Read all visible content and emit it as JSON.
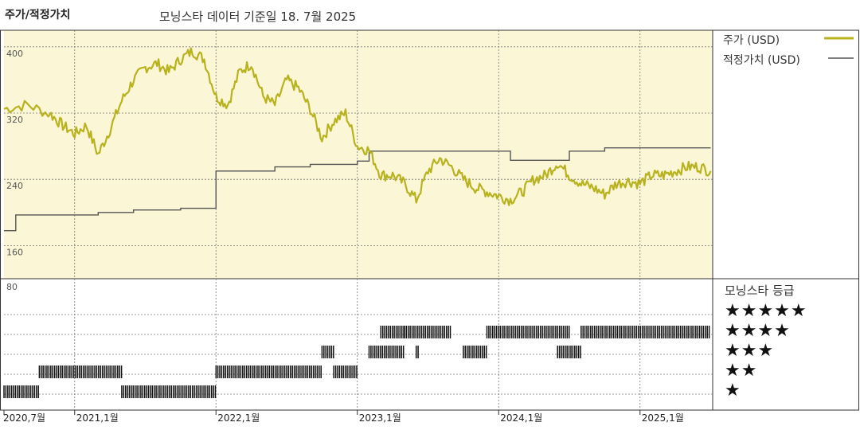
{
  "header": {
    "left_title": "주가/적정가치",
    "center_title": "모닝스타 데이터 기준일 18. 7월 2025"
  },
  "legend": {
    "price_label": "주가 (USD)",
    "fair_value_label": "적정가치 (USD)",
    "rating_title": "모닝스타 등급",
    "star_rows": [
      "★★★★★",
      "★★★★",
      "★★★",
      "★★",
      "★"
    ]
  },
  "colors": {
    "price_line": "#b8b21e",
    "fair_value_line": "#555555",
    "upper_bg": "#fbf6d5",
    "grid": "#777777"
  },
  "chart_data": [
    {
      "type": "line",
      "title": "",
      "y_ticks": [
        400,
        320,
        240,
        160
      ],
      "ylim": [
        120,
        420
      ],
      "x_ticks": [
        "2020,7월",
        "2021,1월",
        "2022,1월",
        "2023,1월",
        "2024,1월",
        "2025,1월"
      ],
      "series": [
        {
          "name": "주가 (USD)",
          "points": [
            [
              "2020-07",
              325
            ],
            [
              "2020-09",
              330
            ],
            [
              "2020-11",
              318
            ],
            [
              "2020-12",
              305
            ],
            [
              "2021-01",
              295
            ],
            [
              "2021-02",
              305
            ],
            [
              "2021-03",
              270
            ],
            [
              "2021-04",
              300
            ],
            [
              "2021-05",
              335
            ],
            [
              "2021-06",
              360
            ],
            [
              "2021-07",
              375
            ],
            [
              "2021-08",
              380
            ],
            [
              "2021-09",
              370
            ],
            [
              "2021-10",
              385
            ],
            [
              "2021-11",
              395
            ],
            [
              "2021-12",
              385
            ],
            [
              "2022-01",
              340
            ],
            [
              "2022-02",
              330
            ],
            [
              "2022-03",
              370
            ],
            [
              "2022-04",
              380
            ],
            [
              "2022-05",
              340
            ],
            [
              "2022-06",
              330
            ],
            [
              "2022-07",
              360
            ],
            [
              "2022-08",
              350
            ],
            [
              "2022-09",
              325
            ],
            [
              "2022-10",
              290
            ],
            [
              "2022-11",
              310
            ],
            [
              "2022-12",
              320
            ],
            [
              "2023-01",
              280
            ],
            [
              "2023-02",
              275
            ],
            [
              "2023-03",
              245
            ],
            [
              "2023-04",
              245
            ],
            [
              "2023-05",
              235
            ],
            [
              "2023-06",
              215
            ],
            [
              "2023-07",
              250
            ],
            [
              "2023-08",
              265
            ],
            [
              "2023-09",
              255
            ],
            [
              "2023-10",
              240
            ],
            [
              "2023-11",
              230
            ],
            [
              "2023-12",
              225
            ],
            [
              "2024-01",
              220
            ],
            [
              "2024-02",
              215
            ],
            [
              "2024-03",
              225
            ],
            [
              "2024-04",
              240
            ],
            [
              "2024-05",
              245
            ],
            [
              "2024-06",
              260
            ],
            [
              "2024-07",
              245
            ],
            [
              "2024-08",
              235
            ],
            [
              "2024-09",
              230
            ],
            [
              "2024-10",
              222
            ],
            [
              "2024-11",
              235
            ],
            [
              "2024-12",
              238
            ],
            [
              "2025-01",
              235
            ],
            [
              "2025-02",
              245
            ],
            [
              "2025-03",
              245
            ],
            [
              "2025-04",
              250
            ],
            [
              "2025-05",
              255
            ],
            [
              "2025-06",
              255
            ],
            [
              "2025-07",
              250
            ]
          ]
        },
        {
          "name": "적정가치 (USD)",
          "step_points": [
            [
              "2020-07",
              178
            ],
            [
              "2020-08",
              197
            ],
            [
              "2021-03",
              200
            ],
            [
              "2021-06",
              203
            ],
            [
              "2021-10",
              205
            ],
            [
              "2022-01",
              250
            ],
            [
              "2022-06",
              255
            ],
            [
              "2022-09",
              258
            ],
            [
              "2023-01",
              262
            ],
            [
              "2023-02",
              274
            ],
            [
              "2023-03",
              274
            ],
            [
              "2024-01",
              274
            ],
            [
              "2024-02",
              263
            ],
            [
              "2024-07",
              274
            ],
            [
              "2024-10",
              278
            ],
            [
              "2025-07",
              278
            ]
          ]
        }
      ]
    },
    {
      "type": "timeline",
      "title": "모닝스타 등급",
      "y_tick": "80",
      "x_ticks": [
        "2020,7월",
        "2021,1월",
        "2022,1월",
        "2023,1월",
        "2024,1월",
        "2025,1월"
      ],
      "series": [
        {
          "name": "★★★★",
          "segments": [
            [
              "2023-03",
              "2023-05"
            ],
            [
              "2023-05",
              "2023-09"
            ],
            [
              "2023-12",
              "2024-07"
            ],
            [
              "2024-08",
              "2025-07"
            ]
          ]
        },
        {
          "name": "★★★",
          "segments": [
            [
              "2022-10",
              "2022-11"
            ],
            [
              "2023-02",
              "2023-05"
            ],
            [
              "2023-06",
              "2023-06"
            ],
            [
              "2023-10",
              "2023-12"
            ],
            [
              "2024-06",
              "2024-08"
            ]
          ]
        },
        {
          "name": "★★",
          "segments": [
            [
              "2020-10",
              "2021-05"
            ],
            [
              "2022-01",
              "2022-10"
            ],
            [
              "2022-11",
              "2023-01"
            ]
          ]
        },
        {
          "name": "★",
          "segments": [
            [
              "2020-07",
              "2020-10"
            ],
            [
              "2021-05",
              "2022-01"
            ]
          ]
        }
      ]
    }
  ]
}
